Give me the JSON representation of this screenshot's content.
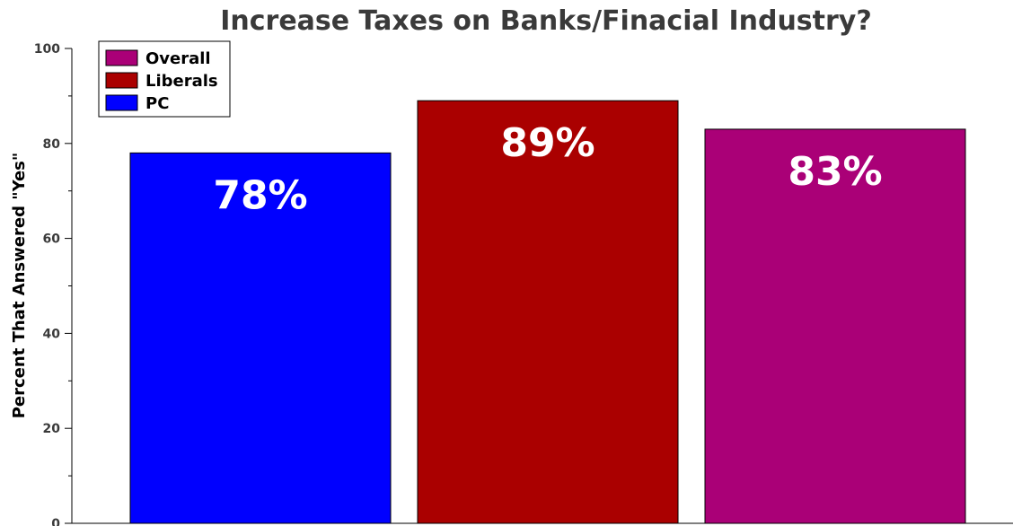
{
  "chart_data": {
    "type": "bar",
    "title": "Increase Taxes on Banks/Finacial Industry?",
    "ylabel": "Percent That Answered \"Yes\"",
    "xlabel": "",
    "ylim": [
      0,
      100
    ],
    "yticks": [
      "0",
      "20",
      "40",
      "60",
      "80",
      "100"
    ],
    "grid": false,
    "legend_position": "top-left",
    "legend": [
      {
        "name": "Overall",
        "color": "#aa0077"
      },
      {
        "name": "Liberals",
        "color": "#aa0000"
      },
      {
        "name": "PC",
        "color": "#0000ff"
      }
    ],
    "bars": [
      {
        "series": "PC",
        "value": 78,
        "label": "78%",
        "color": "#0000ff"
      },
      {
        "series": "Liberals",
        "value": 89,
        "label": "89%",
        "color": "#aa0000"
      },
      {
        "series": "Overall",
        "value": 83,
        "label": "83%",
        "color": "#aa0077"
      }
    ]
  }
}
